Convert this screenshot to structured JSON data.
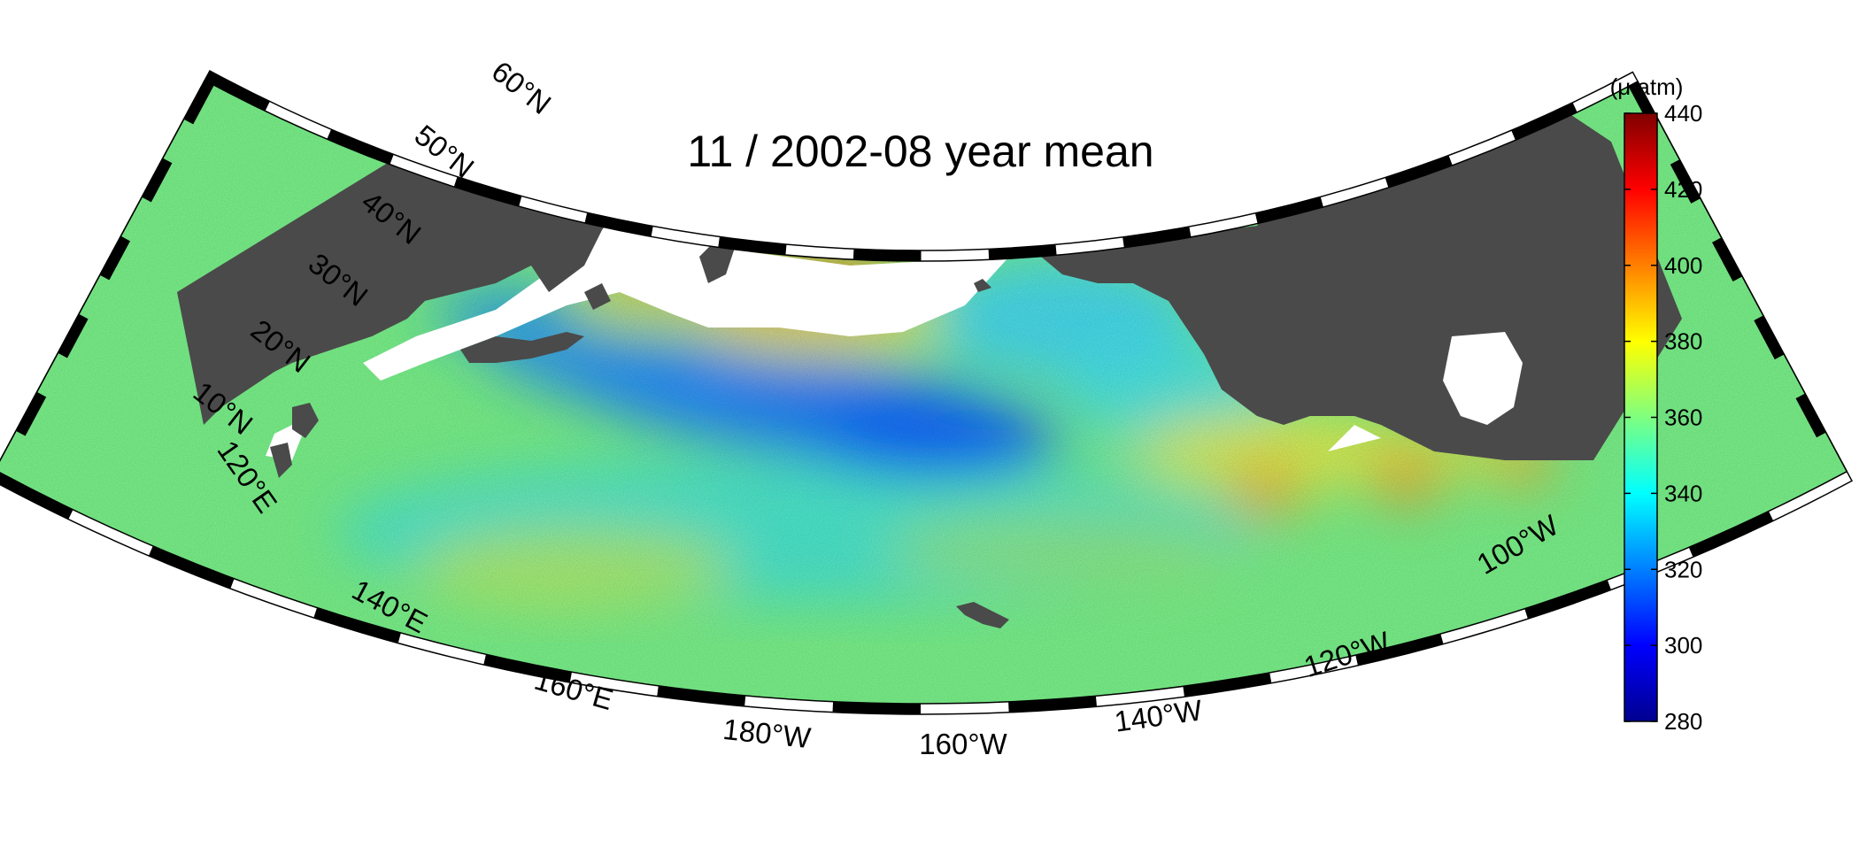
{
  "title": "11 / 2002-08 year mean",
  "colorbar": {
    "units": "(μ atm)",
    "min": 280,
    "max": 440,
    "ticks": [
      "440",
      "420",
      "400",
      "380",
      "360",
      "340",
      "320",
      "300",
      "280"
    ],
    "colormap": "jet"
  },
  "latitude_labels": [
    "60°N",
    "50°N",
    "40°N",
    "30°N",
    "20°N",
    "10°N"
  ],
  "longitude_labels": [
    "120°E",
    "140°E",
    "160°E",
    "180°W",
    "160°W",
    "140°W",
    "120°W",
    "100°W"
  ],
  "map": {
    "projection": "conic",
    "lat_range": [
      10,
      60
    ],
    "lon_range": [
      "120°E",
      "100°W"
    ],
    "land_color": "#4a4a4a",
    "no_data_color": "#ffffff",
    "frame": "black-white dashed"
  },
  "colors": {
    "low": "#00008f",
    "mid": "#7fff7f",
    "high": "#800000"
  }
}
